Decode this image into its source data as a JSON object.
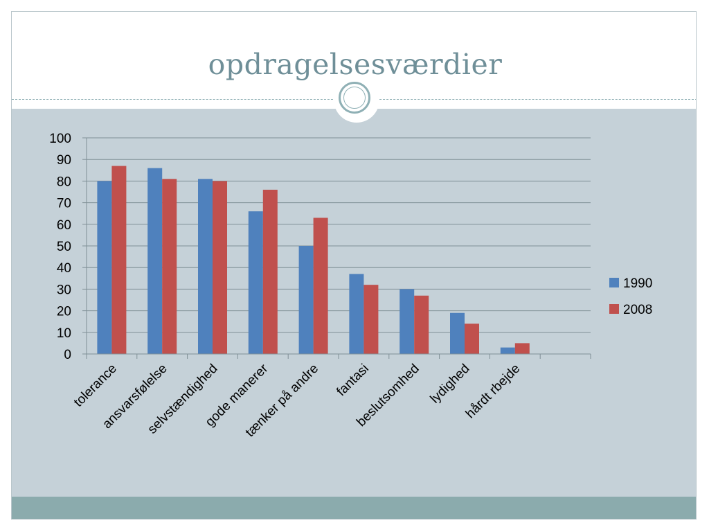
{
  "slide": {
    "title": "opdragelsesværdier"
  },
  "colors": {
    "series_1990": "#4f81bd",
    "series_2008": "#c0504d",
    "panel_bg": "#c5d1d8",
    "footer_bg": "#8babad",
    "title_color": "#6f8f98"
  },
  "chart_data": {
    "type": "bar",
    "categories": [
      "tolerance",
      "ansvarsfølelse",
      "selvstændighed",
      "gode manerer",
      "tænker på andre",
      "fantasi",
      "beslutsomhed",
      "lydighed",
      "hårdt rbejde",
      ""
    ],
    "series": [
      {
        "name": "1990",
        "values": [
          80,
          86,
          81,
          66,
          50,
          37,
          30,
          19,
          3,
          null
        ]
      },
      {
        "name": "2008",
        "values": [
          87,
          81,
          80,
          76,
          63,
          32,
          27,
          14,
          5,
          null
        ]
      }
    ],
    "ylim": [
      0,
      100
    ],
    "yticks": [
      0,
      10,
      20,
      30,
      40,
      50,
      60,
      70,
      80,
      90,
      100
    ],
    "grid": true,
    "legend": "right"
  }
}
